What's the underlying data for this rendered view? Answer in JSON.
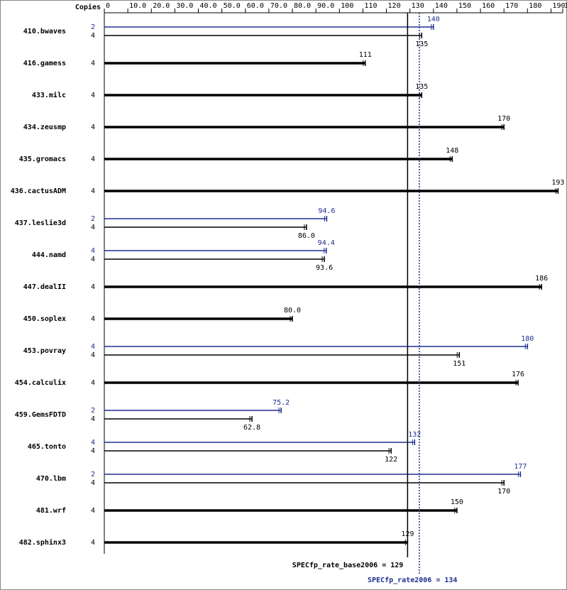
{
  "chart_data": {
    "type": "bar",
    "orientation": "horizontal",
    "copies_label": "Copies",
    "categories": [
      "410.bwaves",
      "416.gamess",
      "433.milc",
      "434.zeusmp",
      "435.gromacs",
      "436.cactusADM",
      "437.leslie3d",
      "444.namd",
      "447.dealII",
      "450.soplex",
      "453.povray",
      "454.calculix",
      "459.GemsFDTD",
      "465.tonto",
      "470.lbm",
      "481.wrf",
      "482.sphinx3"
    ],
    "peak": {
      "color": "#1f2f8f",
      "copies": [
        2,
        null,
        null,
        null,
        null,
        null,
        2,
        4,
        null,
        null,
        4,
        null,
        2,
        4,
        2,
        null,
        null
      ],
      "values": [
        140,
        null,
        null,
        null,
        null,
        null,
        94.6,
        94.4,
        null,
        null,
        180,
        null,
        75.2,
        132,
        177,
        null,
        null
      ],
      "value_labels": [
        "140",
        null,
        null,
        null,
        null,
        null,
        "94.6",
        "94.4",
        null,
        null,
        "180",
        null,
        "75.2",
        "132",
        "177",
        null,
        null
      ]
    },
    "base": {
      "color": "#000000",
      "copies": [
        4,
        4,
        4,
        4,
        4,
        4,
        4,
        4,
        4,
        4,
        4,
        4,
        4,
        4,
        4,
        4,
        4
      ],
      "values": [
        135,
        111,
        135,
        170,
        148,
        193,
        86.0,
        93.6,
        186,
        80.0,
        151,
        176,
        62.8,
        122,
        170,
        150,
        129
      ],
      "value_labels": [
        "135",
        "111",
        "135",
        "170",
        "148",
        "193",
        "86.0",
        "93.6",
        "186",
        "80.0",
        "151",
        "176",
        "62.8",
        "122",
        "170",
        "150",
        "129"
      ]
    },
    "xlim": [
      0,
      195
    ],
    "xticks": [
      0,
      {
        "value": 10,
        "label": "10.0"
      },
      {
        "value": 20,
        "label": "20.0"
      },
      {
        "value": 30,
        "label": "30.0"
      },
      {
        "value": 40,
        "label": "40.0"
      },
      {
        "value": 50,
        "label": "50.0"
      },
      {
        "value": 60,
        "label": "60.0"
      },
      {
        "value": 70,
        "label": "70.0"
      },
      {
        "value": 80,
        "label": "80.0"
      },
      {
        "value": 90,
        "label": "90.0"
      },
      100,
      110,
      120,
      130,
      140,
      150,
      160,
      170,
      180,
      190,
      195
    ],
    "reference_lines": [
      {
        "label": "SPECfp_rate_base2006 = 129",
        "value": 129,
        "color": "#000000",
        "style": "solid"
      },
      {
        "label": "SPECfp_rate2006 = 134",
        "value": 134,
        "color": "#1f2f8f",
        "style": "dotted"
      }
    ]
  }
}
